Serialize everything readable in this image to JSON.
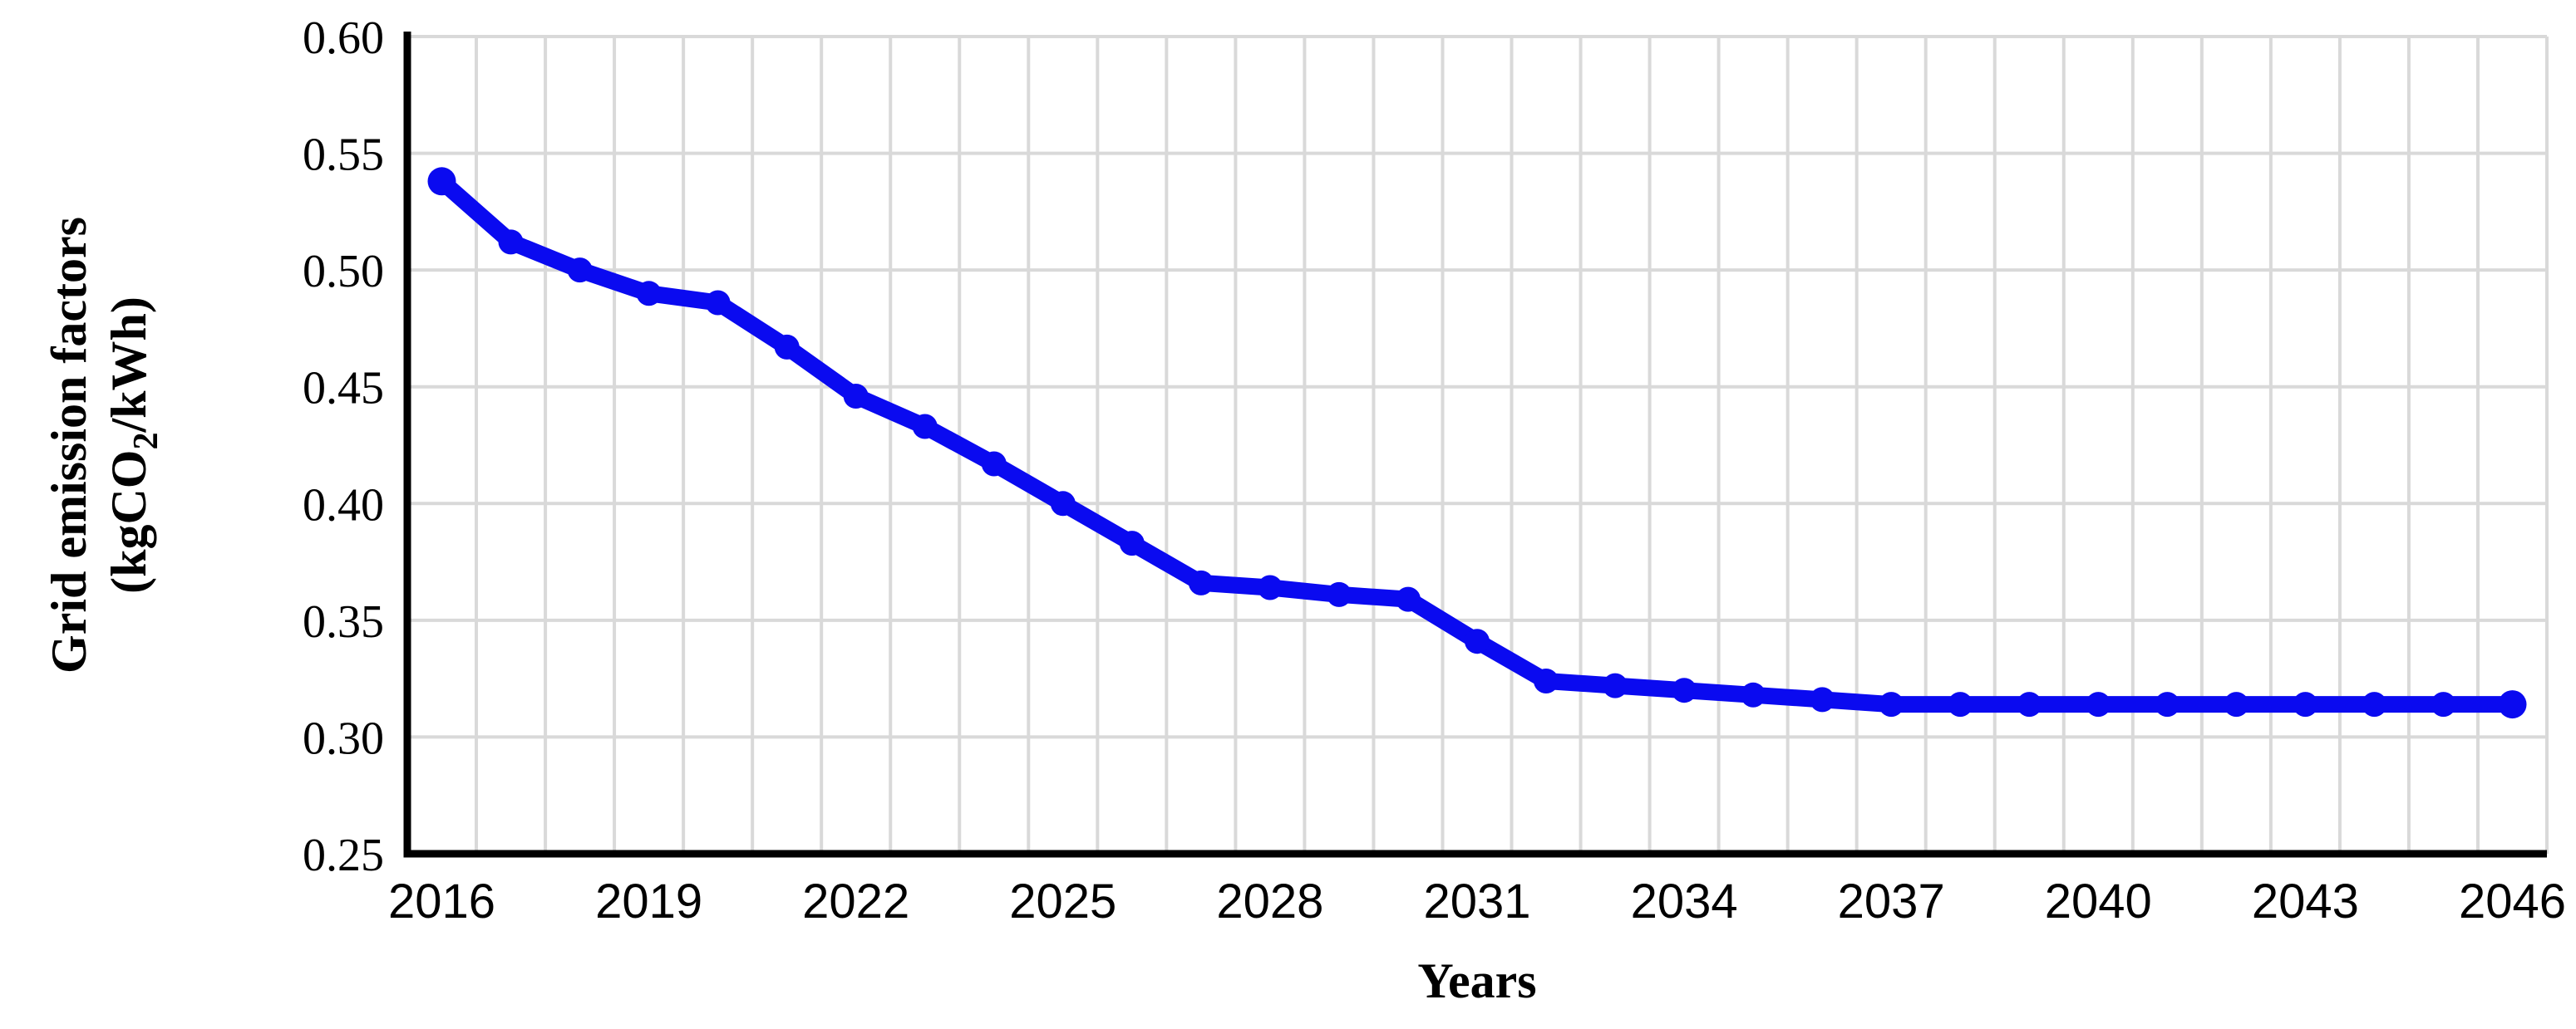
{
  "chart_data": {
    "type": "line",
    "title": "",
    "xlabel": "Years",
    "ylabel_line1": "Grid emission factors",
    "ylabel_line2_prefix": "(kgCO",
    "ylabel_line2_sub": "2",
    "ylabel_line2_suffix": "/kWh)",
    "series": [
      {
        "name": "Grid emission factor",
        "x": [
          2016,
          2017,
          2018,
          2019,
          2020,
          2021,
          2022,
          2023,
          2024,
          2025,
          2026,
          2027,
          2028,
          2029,
          2030,
          2031,
          2032,
          2033,
          2034,
          2035,
          2036,
          2037,
          2038,
          2039,
          2040,
          2041,
          2042,
          2043,
          2044,
          2045,
          2046
        ],
        "values": [
          0.538,
          0.512,
          0.5,
          0.49,
          0.486,
          0.467,
          0.446,
          0.433,
          0.417,
          0.4,
          0.383,
          0.366,
          0.364,
          0.361,
          0.359,
          0.341,
          0.324,
          0.322,
          0.32,
          0.318,
          0.316,
          0.314,
          0.314,
          0.314,
          0.314,
          0.314,
          0.314,
          0.314,
          0.314,
          0.314,
          0.314
        ]
      }
    ],
    "xlim": [
      2015.5,
      2046.5
    ],
    "ylim": [
      0.25,
      0.6
    ],
    "x_tick_years": [
      2016,
      2019,
      2022,
      2025,
      2028,
      2031,
      2034,
      2037,
      2040,
      2043,
      2046
    ],
    "x_tick_labels": [
      "2016",
      "2019",
      "2022",
      "2025",
      "2028",
      "2031",
      "2034",
      "2037",
      "2040",
      "2043",
      "2046"
    ],
    "y_ticks": [
      0.6,
      0.55,
      0.5,
      0.45,
      0.4,
      0.35,
      0.3,
      0.25
    ],
    "y_tick_labels": [
      "0.60",
      "0.55",
      "0.50",
      "0.45",
      "0.40",
      "0.35",
      "0.30",
      "0.25"
    ],
    "grid": true,
    "legend": "none",
    "line_color": "#0a0af0",
    "gridline_color": "#d9d9d9",
    "axis_color": "#000000",
    "background_color": "#ffffff"
  }
}
